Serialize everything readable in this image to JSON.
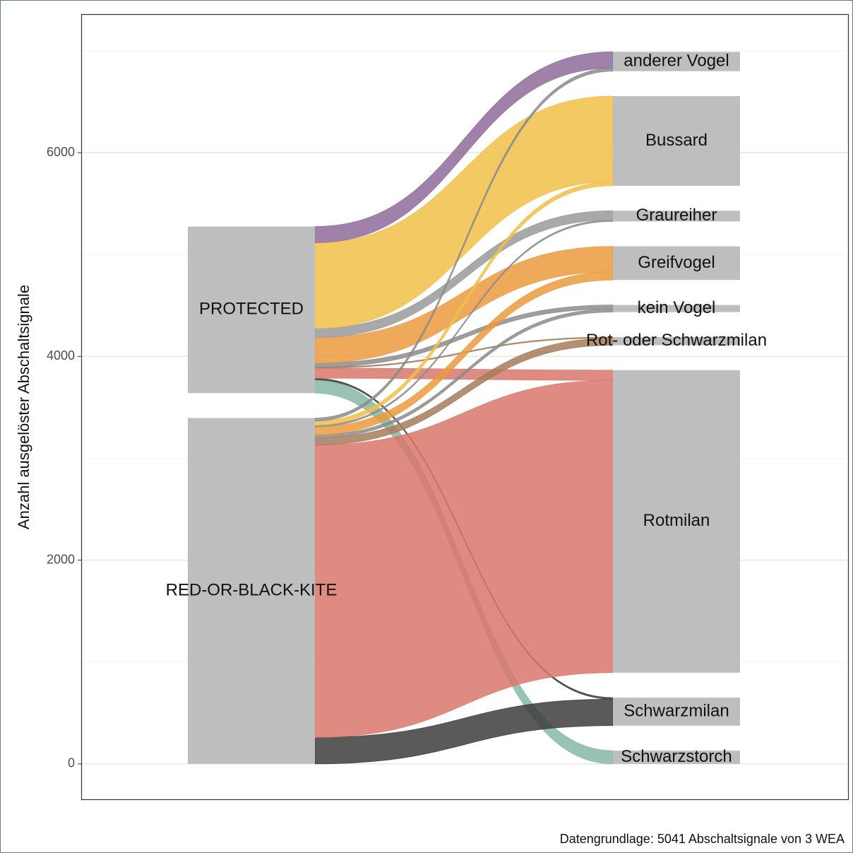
{
  "chart_data": {
    "type": "alluvial",
    "y_label": "Anzahl ausgelöster Abschaltsignale",
    "caption": "Datengrundlage: 5041 Abschaltsignale von 3 WEA",
    "ylim": [
      -355,
      7360
    ],
    "yticks": [
      0,
      2000,
      4000,
      6000
    ],
    "yminor": [
      1000,
      3000,
      5000,
      7000
    ],
    "grid": true,
    "node_color": "#bebebe",
    "left_nodes": [
      "RED-OR-BLACK-KITE",
      "PROTECTED"
    ],
    "right_nodes": [
      "Schwarzstorch",
      "Schwarzmilan",
      "Rotmilan",
      "Rot- oder Schwarzmilan",
      "kein Vogel",
      "Greifvogel",
      "Graureiher",
      "Bussard",
      "anderer Vogel"
    ],
    "flows": [
      {
        "source": "PROTECTED",
        "target": "Schwarzstorch",
        "value": 130,
        "color": "#86b8a6"
      },
      {
        "source": "RED-OR-BLACK-KITE",
        "target": "Schwarzmilan",
        "value": 260,
        "color": "#3d3d3d"
      },
      {
        "source": "PROTECTED",
        "target": "Schwarzmilan",
        "value": 15,
        "color": "#3d3d3d"
      },
      {
        "source": "RED-OR-BLACK-KITE",
        "target": "Rotmilan",
        "value": 2870,
        "color": "#d9776b"
      },
      {
        "source": "PROTECTED",
        "target": "Rotmilan",
        "value": 100,
        "color": "#d9776b"
      },
      {
        "source": "RED-OR-BLACK-KITE",
        "target": "Rot- oder Schwarzmilan",
        "value": 70,
        "color": "#a67c5b"
      },
      {
        "source": "PROTECTED",
        "target": "Rot- oder Schwarzmilan",
        "value": 10,
        "color": "#a67c5b"
      },
      {
        "source": "RED-OR-BLACK-KITE",
        "target": "kein Vogel",
        "value": 30,
        "color": "#8c8c8c"
      },
      {
        "source": "PROTECTED",
        "target": "kein Vogel",
        "value": 40,
        "color": "#8c8c8c"
      },
      {
        "source": "RED-OR-BLACK-KITE",
        "target": "Greifvogel",
        "value": 80,
        "color": "#eb9a3d"
      },
      {
        "source": "PROTECTED",
        "target": "Greifvogel",
        "value": 250,
        "color": "#eb9a3d"
      },
      {
        "source": "RED-OR-BLACK-KITE",
        "target": "Graureiher",
        "value": 15,
        "color": "#8c8c8c"
      },
      {
        "source": "PROTECTED",
        "target": "Graureiher",
        "value": 90,
        "color": "#9a9a9a"
      },
      {
        "source": "RED-OR-BLACK-KITE",
        "target": "Bussard",
        "value": 40,
        "color": "#f0c048"
      },
      {
        "source": "PROTECTED",
        "target": "Bussard",
        "value": 840,
        "color": "#f0c048"
      },
      {
        "source": "RED-OR-BLACK-KITE",
        "target": "anderer Vogel",
        "value": 30,
        "color": "#8c8c8c"
      },
      {
        "source": "PROTECTED",
        "target": "anderer Vogel",
        "value": 160,
        "color": "#8e6b9b"
      }
    ]
  }
}
